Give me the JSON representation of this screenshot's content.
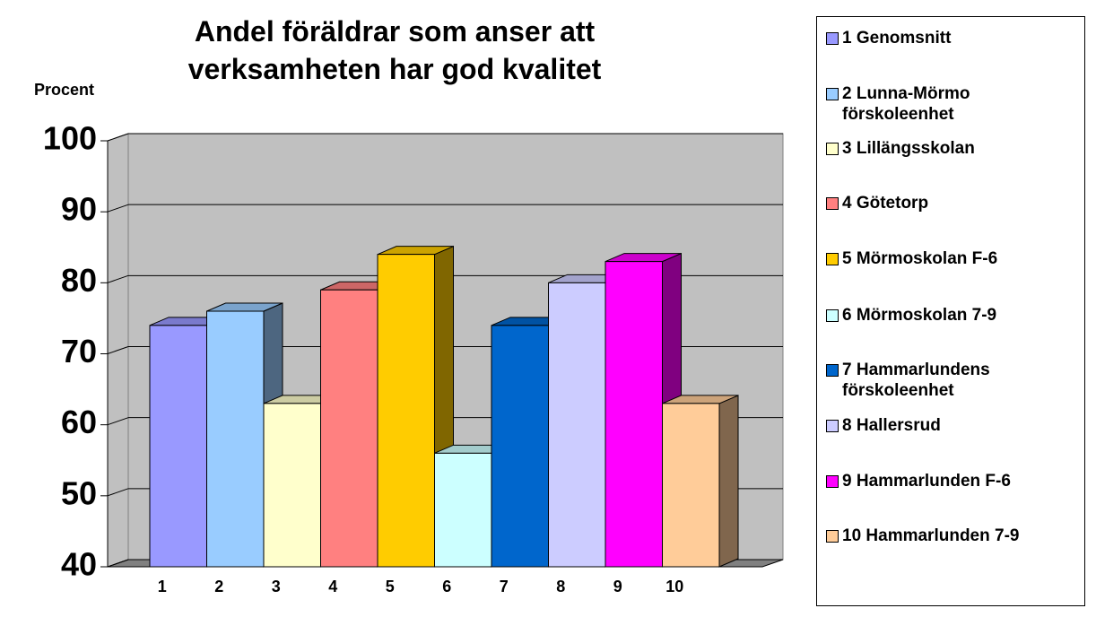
{
  "chart_data": {
    "type": "bar3d",
    "title": "Andel föräldrar som anser att verksamheten har god kvalitet",
    "y_label": "Procent",
    "categories": [
      "1",
      "2",
      "3",
      "4",
      "5",
      "6",
      "7",
      "8",
      "9",
      "10"
    ],
    "values": [
      74,
      76,
      63,
      79,
      84,
      56,
      74,
      80,
      83,
      63
    ],
    "colors": [
      "#9999ff",
      "#99ccff",
      "#ffffcc",
      "#ff8080",
      "#ffcc00",
      "#ccffff",
      "#0066cc",
      "#ccccff",
      "#ff00ff",
      "#ffcc99"
    ],
    "legend": [
      "1 Genomsnitt",
      "2 Lunna-Mörmo förskoleenhet",
      "3 Lillängsskolan",
      "4 Götetorp",
      "5 Mörmoskolan F-6",
      "6 Mörmoskolan 7-9",
      "7 Hammarlundens förskoleenhet",
      "8 Hallersrud",
      "9 Hammarlunden F-6",
      "10 Hammarlunden 7-9"
    ],
    "ylim": [
      40,
      100
    ],
    "yticks": [
      40,
      50,
      60,
      70,
      80,
      90,
      100
    ],
    "grid": true
  }
}
